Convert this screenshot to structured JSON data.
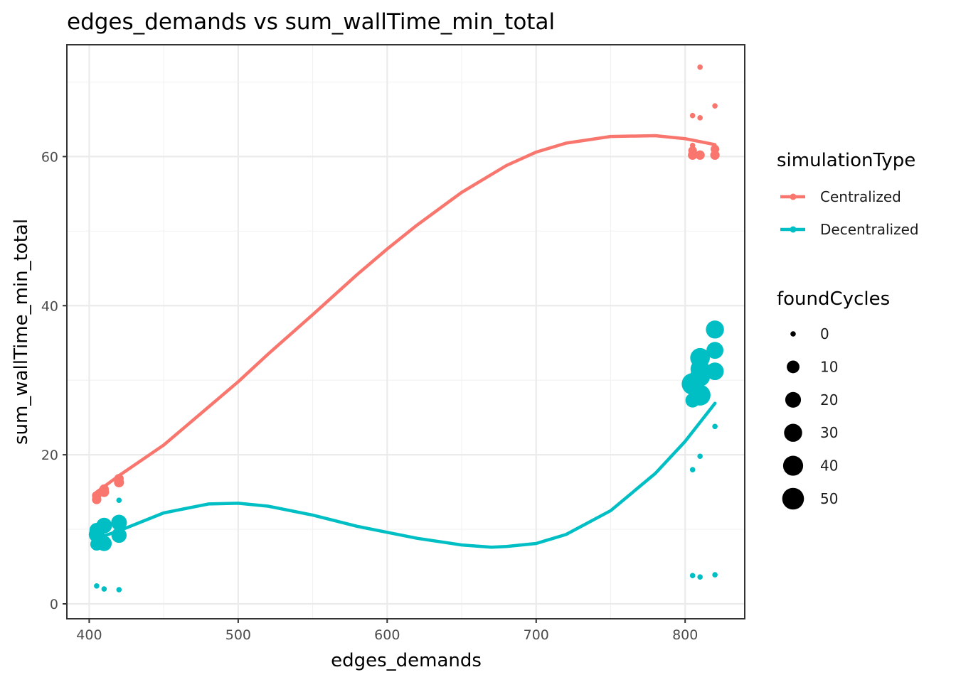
{
  "chart_data": {
    "type": "scatter",
    "title": "edges_demands  vs  sum_wallTime_min_total",
    "xlabel": "edges_demands",
    "ylabel": "sum_wallTime_min_total",
    "xlim": [
      385,
      840
    ],
    "ylim": [
      -2,
      75
    ],
    "x_ticks": [
      400,
      500,
      600,
      700,
      800
    ],
    "y_ticks": [
      0,
      20,
      40,
      60
    ],
    "x_tick_labels": [
      "400",
      "500",
      "600",
      "700",
      "800"
    ],
    "y_tick_labels": [
      "0",
      "20",
      "40",
      "60"
    ],
    "x_minor": [
      450,
      550,
      650,
      750
    ],
    "y_minor": [
      10,
      30,
      50,
      70
    ],
    "grid": true,
    "legend_position": "right",
    "color_legend": {
      "title": "simulationType",
      "entries": [
        {
          "label": "Centralized",
          "color": "#F8766D"
        },
        {
          "label": "Decentralized",
          "color": "#00BFC4"
        }
      ]
    },
    "size_legend": {
      "title": "foundCycles",
      "values": [
        0,
        10,
        20,
        30,
        40,
        50
      ],
      "labels": [
        "0",
        "10",
        "20",
        "30",
        "40",
        "50"
      ]
    },
    "series": [
      {
        "name": "Centralized",
        "color": "#F8766D",
        "points": [
          {
            "x": 405,
            "y": 14.0,
            "size": 3
          },
          {
            "x": 405,
            "y": 14.5,
            "size": 3
          },
          {
            "x": 410,
            "y": 15.0,
            "size": 4
          },
          {
            "x": 410,
            "y": 15.4,
            "size": 3
          },
          {
            "x": 420,
            "y": 16.3,
            "size": 4
          },
          {
            "x": 420,
            "y": 16.8,
            "size": 3
          },
          {
            "x": 805,
            "y": 65.5,
            "size": 0
          },
          {
            "x": 805,
            "y": 61.5,
            "size": 0
          },
          {
            "x": 805,
            "y": 60.8,
            "size": 2
          },
          {
            "x": 805,
            "y": 60.2,
            "size": 3
          },
          {
            "x": 810,
            "y": 72.0,
            "size": 0
          },
          {
            "x": 810,
            "y": 65.2,
            "size": 0
          },
          {
            "x": 810,
            "y": 60.2,
            "size": 3
          },
          {
            "x": 820,
            "y": 66.8,
            "size": 0
          },
          {
            "x": 820,
            "y": 61.0,
            "size": 2
          },
          {
            "x": 820,
            "y": 60.2,
            "size": 3
          }
        ],
        "smooth": {
          "x": [
            405,
            420,
            450,
            480,
            500,
            520,
            550,
            580,
            600,
            620,
            650,
            680,
            700,
            720,
            750,
            780,
            800,
            820
          ],
          "y": [
            15.0,
            17.2,
            21.3,
            26.4,
            29.8,
            33.5,
            38.8,
            44.2,
            47.6,
            50.8,
            55.2,
            58.8,
            60.6,
            61.8,
            62.7,
            62.8,
            62.4,
            61.6
          ]
        }
      },
      {
        "name": "Decentralized",
        "color": "#00BFC4",
        "points": [
          {
            "x": 405,
            "y": 2.4,
            "size": 0
          },
          {
            "x": 410,
            "y": 2.0,
            "size": 0
          },
          {
            "x": 420,
            "y": 1.9,
            "size": 0
          },
          {
            "x": 420,
            "y": 13.9,
            "size": 0
          },
          {
            "x": 405,
            "y": 8.0,
            "size": 10
          },
          {
            "x": 405,
            "y": 9.3,
            "size": 20
          },
          {
            "x": 405,
            "y": 9.9,
            "size": 15
          },
          {
            "x": 410,
            "y": 8.1,
            "size": 18
          },
          {
            "x": 410,
            "y": 10.5,
            "size": 20
          },
          {
            "x": 420,
            "y": 9.2,
            "size": 18
          },
          {
            "x": 420,
            "y": 10.9,
            "size": 20
          },
          {
            "x": 805,
            "y": 3.8,
            "size": 0
          },
          {
            "x": 810,
            "y": 3.6,
            "size": 0
          },
          {
            "x": 820,
            "y": 3.9,
            "size": 0
          },
          {
            "x": 805,
            "y": 18.0,
            "size": 0
          },
          {
            "x": 810,
            "y": 19.8,
            "size": 0
          },
          {
            "x": 820,
            "y": 23.8,
            "size": 0
          },
          {
            "x": 805,
            "y": 27.3,
            "size": 15
          },
          {
            "x": 805,
            "y": 29.5,
            "size": 50
          },
          {
            "x": 810,
            "y": 28.0,
            "size": 45
          },
          {
            "x": 810,
            "y": 30.5,
            "size": 40
          },
          {
            "x": 810,
            "y": 31.5,
            "size": 35
          },
          {
            "x": 810,
            "y": 33.0,
            "size": 38
          },
          {
            "x": 820,
            "y": 31.2,
            "size": 28
          },
          {
            "x": 820,
            "y": 34.0,
            "size": 25
          },
          {
            "x": 820,
            "y": 36.8,
            "size": 30
          }
        ],
        "smooth": {
          "x": [
            405,
            420,
            450,
            480,
            500,
            520,
            550,
            580,
            600,
            620,
            650,
            670,
            680,
            700,
            720,
            750,
            780,
            800,
            820
          ],
          "y": [
            8.8,
            9.8,
            12.2,
            13.4,
            13.5,
            13.1,
            11.9,
            10.4,
            9.6,
            8.8,
            7.9,
            7.6,
            7.7,
            8.1,
            9.3,
            12.5,
            17.5,
            21.8,
            26.9
          ]
        }
      }
    ]
  }
}
